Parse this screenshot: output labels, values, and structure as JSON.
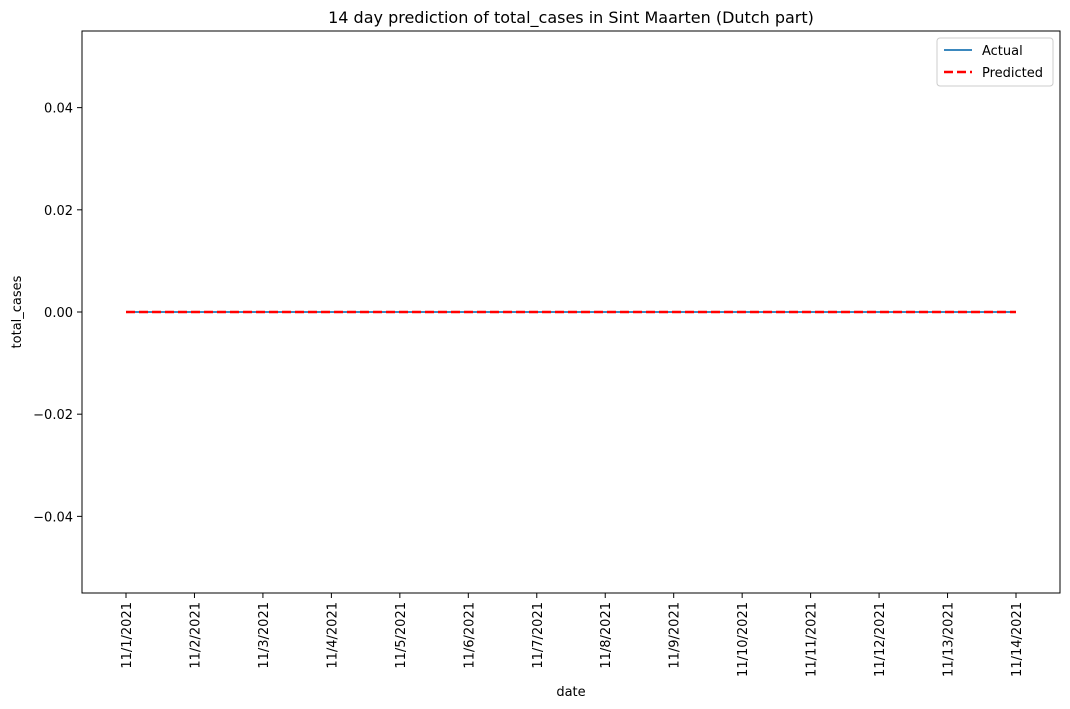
{
  "chart_data": {
    "type": "line",
    "title": "14 day prediction of total_cases in Sint Maarten (Dutch part)",
    "xlabel": "date",
    "ylabel": "total_cases",
    "categories": [
      "11/1/2021",
      "11/2/2021",
      "11/3/2021",
      "11/4/2021",
      "11/5/2021",
      "11/6/2021",
      "11/7/2021",
      "11/8/2021",
      "11/9/2021",
      "11/10/2021",
      "11/11/2021",
      "11/12/2021",
      "11/13/2021",
      "11/14/2021"
    ],
    "ylim": [
      -0.055,
      0.055
    ],
    "yticks": [
      -0.04,
      -0.02,
      0.0,
      0.02,
      0.04
    ],
    "ytick_labels": [
      "−0.04",
      "−0.02",
      "0.00",
      "0.02",
      "0.04"
    ],
    "series": [
      {
        "name": "Actual",
        "color": "#1f77b4",
        "style": "solid",
        "values": [
          0,
          0,
          0,
          0,
          0,
          0,
          0,
          0,
          0,
          0,
          0,
          0,
          0,
          0
        ]
      },
      {
        "name": "Predicted",
        "color": "#ff0000",
        "style": "dashed",
        "values": [
          0,
          0,
          0,
          0,
          0,
          0,
          0,
          0,
          0,
          0,
          0,
          0,
          0,
          0
        ]
      }
    ],
    "legend_position": "top-right",
    "grid": false
  }
}
